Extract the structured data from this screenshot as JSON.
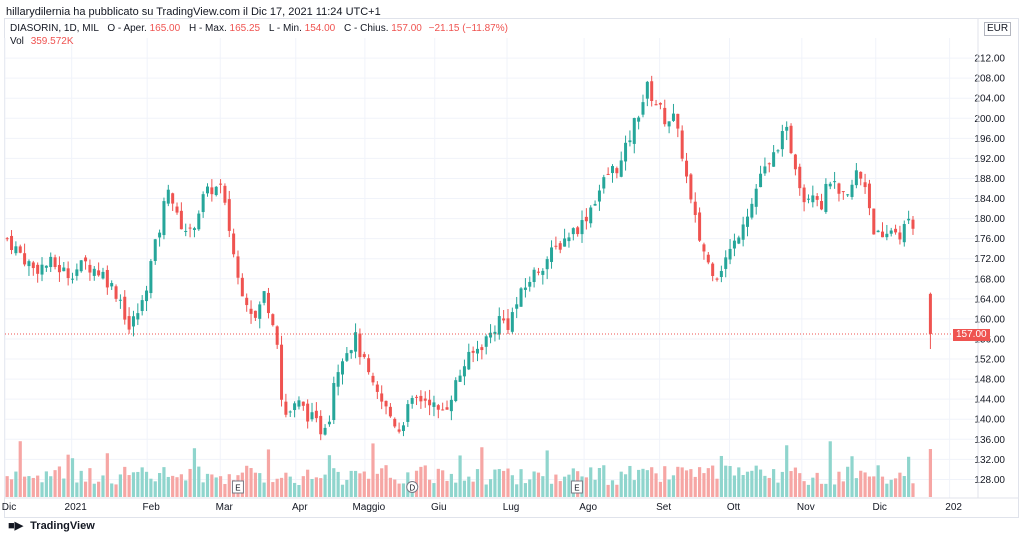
{
  "header": {
    "published_by": "hillarydilernia ha pubblicato su TradingView.com il Dic 17, 2021 11:24 UTC+1",
    "symbol": "DIASORIN, 1D, MIL",
    "open_label": "O - Aper.",
    "open_value": "165.00",
    "high_label": "H - Max.",
    "high_value": "165.25",
    "low_label": "L - Min.",
    "low_value": "154.00",
    "close_label": "C - Chius.",
    "close_value": "157.00",
    "change_value": "−21.15 (−11.87%)",
    "volume_label": "Vol",
    "volume_value": "359.572K",
    "currency": "EUR"
  },
  "footer": {
    "brand": "TradingView",
    "logo_icon": "tradingview-logo-icon"
  },
  "colors": {
    "up": "#26a69a",
    "down": "#ef5350",
    "up_volume": "#8fd5cd",
    "down_volume": "#f6a6a4",
    "grid": "#f0f3fa"
  },
  "chart_data": {
    "type": "candlestick",
    "price_axis": {
      "ticks": [
        128,
        132,
        136,
        140,
        144,
        148,
        152,
        156,
        160,
        164,
        168,
        172,
        176,
        180,
        184,
        188,
        192,
        196,
        200,
        204,
        208,
        212
      ],
      "ylim": [
        124.5,
        216
      ]
    },
    "time_axis": [
      {
        "label": "Dic",
        "pos": 0.0
      },
      {
        "label": "2021",
        "pos": 0.083
      },
      {
        "label": "Feb",
        "pos": 0.177
      },
      {
        "label": "Mar",
        "pos": 0.268
      },
      {
        "label": "Apr",
        "pos": 0.362
      },
      {
        "label": "Maggio",
        "pos": 0.448
      },
      {
        "label": "Giu",
        "pos": 0.535
      },
      {
        "label": "Lug",
        "pos": 0.625
      },
      {
        "label": "Ago",
        "pos": 0.721
      },
      {
        "label": "Set",
        "pos": 0.815
      },
      {
        "label": "Ott",
        "pos": 0.902
      },
      {
        "label": "Nov",
        "pos": 0.992
      },
      {
        "label": "Dic",
        "pos": 1.084
      },
      {
        "label": "202",
        "pos": 1.176
      }
    ],
    "last_price": "157.00",
    "last_value": 157.0,
    "event_markers": [
      {
        "label": "E",
        "pos": 0.29
      },
      {
        "label": "D",
        "pos": 0.507
      },
      {
        "label": "E",
        "pos": 0.712
      }
    ],
    "price_path": [
      [
        0,
        176
      ],
      [
        3,
        173
      ],
      [
        6,
        170
      ],
      [
        10,
        171
      ],
      [
        14,
        169
      ],
      [
        18,
        171
      ],
      [
        22,
        169
      ],
      [
        26,
        164
      ],
      [
        28,
        158
      ],
      [
        31,
        163
      ],
      [
        33,
        171
      ],
      [
        35,
        178
      ],
      [
        37,
        187
      ],
      [
        39,
        180
      ],
      [
        42,
        177
      ],
      [
        45,
        184
      ],
      [
        47,
        186
      ],
      [
        49,
        186
      ],
      [
        51,
        178
      ],
      [
        53,
        168
      ],
      [
        55,
        164
      ],
      [
        57,
        160
      ],
      [
        59,
        165
      ],
      [
        61,
        160
      ],
      [
        62,
        156
      ],
      [
        63,
        144
      ],
      [
        64,
        141
      ],
      [
        67,
        143
      ],
      [
        70,
        140
      ],
      [
        72,
        138
      ],
      [
        74,
        141
      ],
      [
        75,
        148
      ],
      [
        77,
        153
      ],
      [
        80,
        156
      ],
      [
        82,
        151
      ],
      [
        84,
        146
      ],
      [
        87,
        142
      ],
      [
        90,
        138
      ],
      [
        92,
        142
      ],
      [
        94,
        144
      ],
      [
        97,
        144
      ],
      [
        99,
        141
      ],
      [
        101,
        143
      ],
      [
        103,
        147
      ],
      [
        105,
        151
      ],
      [
        108,
        154
      ],
      [
        111,
        157
      ],
      [
        113,
        160
      ],
      [
        115,
        159
      ],
      [
        117,
        163
      ],
      [
        120,
        168
      ],
      [
        123,
        171
      ],
      [
        126,
        174
      ],
      [
        129,
        177
      ],
      [
        132,
        179
      ],
      [
        135,
        184
      ],
      [
        138,
        189
      ],
      [
        141,
        191
      ],
      [
        144,
        199
      ],
      [
        147,
        206
      ],
      [
        149,
        203
      ],
      [
        151,
        200
      ],
      [
        153,
        200
      ],
      [
        155,
        193
      ],
      [
        157,
        183
      ],
      [
        159,
        176
      ],
      [
        161,
        171
      ],
      [
        163,
        169
      ],
      [
        165,
        172
      ],
      [
        167,
        175
      ],
      [
        169,
        180
      ],
      [
        171,
        183
      ],
      [
        173,
        189
      ],
      [
        175,
        190
      ],
      [
        177,
        195
      ],
      [
        179,
        197
      ],
      [
        181,
        191
      ],
      [
        183,
        184
      ],
      [
        185,
        186
      ],
      [
        187,
        183
      ],
      [
        189,
        188
      ],
      [
        191,
        184
      ],
      [
        193,
        184
      ],
      [
        195,
        189
      ],
      [
        197,
        187
      ],
      [
        199,
        178
      ],
      [
        201,
        175
      ],
      [
        203,
        178
      ],
      [
        205,
        177
      ],
      [
        207,
        179
      ],
      [
        208,
        178
      ]
    ],
    "last_candle": {
      "open": 165.0,
      "high": 165.25,
      "low": 154.0,
      "close": 157.0
    }
  }
}
